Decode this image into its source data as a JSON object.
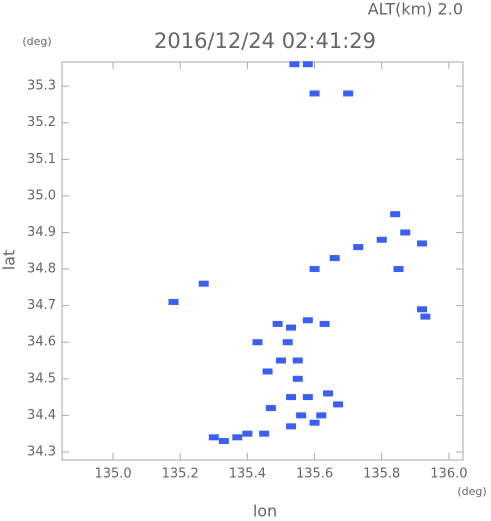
{
  "chart_data": {
    "type": "scatter",
    "title": "2016/12/24 02:41:29",
    "subtitle": "ALT(km) 2.0",
    "x_label": "lon",
    "y_label": "lat",
    "x_unit": "(deg)",
    "y_unit": "(deg)",
    "x": [
      135.54,
      135.58,
      135.6,
      135.7,
      135.84,
      135.87,
      135.92,
      135.8,
      135.73,
      135.66,
      135.85,
      135.6,
      135.27,
      135.93,
      135.92,
      135.18,
      135.49,
      135.53,
      135.58,
      135.63,
      135.52,
      135.55,
      135.5,
      135.55,
      135.58,
      135.64,
      135.53,
      135.47,
      135.56,
      135.6,
      135.53,
      135.45,
      135.4,
      135.33,
      135.37,
      135.43,
      135.46,
      135.62,
      135.67,
      135.3
    ],
    "y": [
      35.36,
      35.36,
      35.28,
      35.28,
      34.95,
      34.9,
      34.87,
      34.88,
      34.86,
      34.83,
      34.8,
      34.8,
      34.76,
      34.67,
      34.69,
      34.71,
      34.65,
      34.64,
      34.66,
      34.65,
      34.6,
      34.55,
      34.55,
      34.5,
      34.45,
      34.46,
      34.45,
      34.42,
      34.4,
      34.38,
      34.37,
      34.35,
      34.35,
      34.33,
      34.34,
      34.6,
      34.52,
      34.4,
      34.43,
      34.34
    ],
    "color": "#3d5ef2",
    "xlim": [
      134.848,
      136.042
    ],
    "ylim": [
      34.278,
      35.366
    ],
    "xticks": [
      {
        "value": 135,
        "label": "135.0"
      },
      135.2,
      135.4,
      135.6,
      135.8,
      {
        "value": 136,
        "label": "136.0"
      }
    ],
    "yticks": [
      34.3,
      34.4,
      34.5,
      34.6,
      34.7,
      34.8,
      34.9,
      {
        "value": 35,
        "label": "35.0"
      },
      35.1,
      35.2,
      35.3
    ]
  }
}
